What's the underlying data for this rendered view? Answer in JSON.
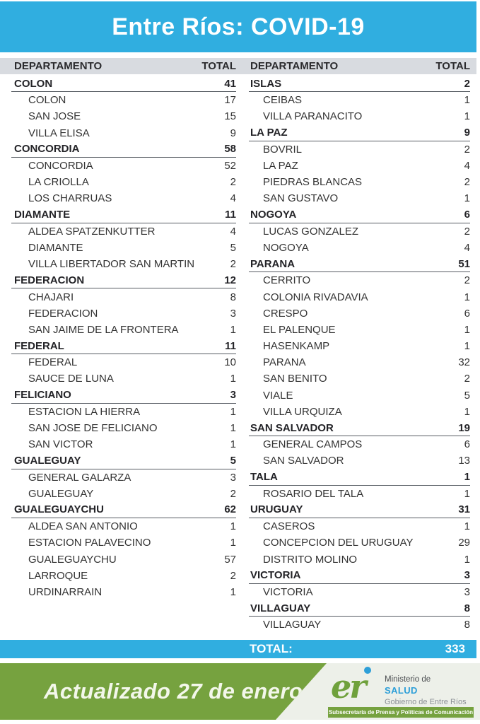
{
  "title": "Entre Ríos: COVID-19",
  "table": {
    "department_header": "DEPARTAMENTO",
    "total_header": "TOTAL",
    "left_groups": [
      {
        "department": "COLON",
        "total": 41,
        "localities": [
          {
            "name": "COLON",
            "total": 17
          },
          {
            "name": "SAN JOSE",
            "total": 15
          },
          {
            "name": "VILLA ELISA",
            "total": 9
          }
        ]
      },
      {
        "department": "CONCORDIA",
        "total": 58,
        "localities": [
          {
            "name": "CONCORDIA",
            "total": 52
          },
          {
            "name": "LA CRIOLLA",
            "total": 2
          },
          {
            "name": "LOS CHARRUAS",
            "total": 4
          }
        ]
      },
      {
        "department": "DIAMANTE",
        "total": 11,
        "localities": [
          {
            "name": "ALDEA SPATZENKUTTER",
            "total": 4
          },
          {
            "name": "DIAMANTE",
            "total": 5
          },
          {
            "name": "VILLA LIBERTADOR SAN MARTIN",
            "total": 2
          }
        ]
      },
      {
        "department": "FEDERACION",
        "total": 12,
        "localities": [
          {
            "name": "CHAJARI",
            "total": 8
          },
          {
            "name": "FEDERACION",
            "total": 3
          },
          {
            "name": "SAN JAIME DE LA FRONTERA",
            "total": 1
          }
        ]
      },
      {
        "department": "FEDERAL",
        "total": 11,
        "localities": [
          {
            "name": "FEDERAL",
            "total": 10
          },
          {
            "name": "SAUCE DE LUNA",
            "total": 1
          }
        ]
      },
      {
        "department": "FELICIANO",
        "total": 3,
        "localities": [
          {
            "name": "ESTACION LA HIERRA",
            "total": 1
          },
          {
            "name": "SAN JOSE DE FELICIANO",
            "total": 1
          },
          {
            "name": "SAN VICTOR",
            "total": 1
          }
        ]
      },
      {
        "department": "GUALEGUAY",
        "total": 5,
        "localities": [
          {
            "name": "GENERAL GALARZA",
            "total": 3
          },
          {
            "name": "GUALEGUAY",
            "total": 2
          }
        ]
      },
      {
        "department": "GUALEGUAYCHU",
        "total": 62,
        "localities": [
          {
            "name": "ALDEA SAN ANTONIO",
            "total": 1
          },
          {
            "name": "ESTACION PALAVECINO",
            "total": 1
          },
          {
            "name": "GUALEGUAYCHU",
            "total": 57
          },
          {
            "name": "LARROQUE",
            "total": 2
          },
          {
            "name": "URDINARRAIN",
            "total": 1
          }
        ]
      }
    ],
    "right_groups": [
      {
        "department": "ISLAS",
        "total": 2,
        "localities": [
          {
            "name": "CEIBAS",
            "total": 1
          },
          {
            "name": "VILLA PARANACITO",
            "total": 1
          }
        ]
      },
      {
        "department": "LA PAZ",
        "total": 9,
        "localities": [
          {
            "name": "BOVRIL",
            "total": 2
          },
          {
            "name": "LA PAZ",
            "total": 4
          },
          {
            "name": "PIEDRAS BLANCAS",
            "total": 2
          },
          {
            "name": "SAN GUSTAVO",
            "total": 1
          }
        ]
      },
      {
        "department": "NOGOYA",
        "total": 6,
        "localities": [
          {
            "name": "LUCAS GONZALEZ",
            "total": 2
          },
          {
            "name": "NOGOYA",
            "total": 4
          }
        ]
      },
      {
        "department": "PARANA",
        "total": 51,
        "localities": [
          {
            "name": "CERRITO",
            "total": 2
          },
          {
            "name": "COLONIA RIVADAVIA",
            "total": 1
          },
          {
            "name": "CRESPO",
            "total": 6
          },
          {
            "name": "EL PALENQUE",
            "total": 1
          },
          {
            "name": "HASENKAMP",
            "total": 1
          },
          {
            "name": "PARANA",
            "total": 32
          },
          {
            "name": "SAN BENITO",
            "total": 2
          },
          {
            "name": "VIALE",
            "total": 5
          },
          {
            "name": "VILLA URQUIZA",
            "total": 1
          }
        ]
      },
      {
        "department": "SAN SALVADOR",
        "total": 19,
        "localities": [
          {
            "name": "GENERAL CAMPOS",
            "total": 6
          },
          {
            "name": "SAN SALVADOR",
            "total": 13
          }
        ]
      },
      {
        "department": "TALA",
        "total": 1,
        "localities": [
          {
            "name": "ROSARIO DEL TALA",
            "total": 1
          }
        ]
      },
      {
        "department": "URUGUAY",
        "total": 31,
        "localities": [
          {
            "name": "CASEROS",
            "total": 1
          },
          {
            "name": "CONCEPCION DEL URUGUAY",
            "total": 29
          },
          {
            "name": "DISTRITO MOLINO",
            "total": 1
          }
        ]
      },
      {
        "department": "VICTORIA",
        "total": 3,
        "localities": [
          {
            "name": "VICTORIA",
            "total": 3
          }
        ]
      },
      {
        "department": "VILLAGUAY",
        "total": 8,
        "localities": [
          {
            "name": "VILLAGUAY",
            "total": 8
          }
        ]
      }
    ]
  },
  "grand_total": {
    "label": "TOTAL:",
    "value": 333
  },
  "footer": {
    "updated_text": "Actualizado 27 de enero",
    "logo_text": "er",
    "ministry_line1": "Ministerio de",
    "ministry_line2": "SALUD",
    "ministry_line3": "Gobierno de Entre Ríos",
    "subsecretary_bar": "Subsecretaría de Prensa y Políticas de Comunicación"
  },
  "colors": {
    "accent_cyan": "#30AEE0",
    "header_gray": "#D8DBE0",
    "accent_green": "#76A23F",
    "salud_blue": "#2D9FD8",
    "footer_bg": "#EDF0E9"
  }
}
